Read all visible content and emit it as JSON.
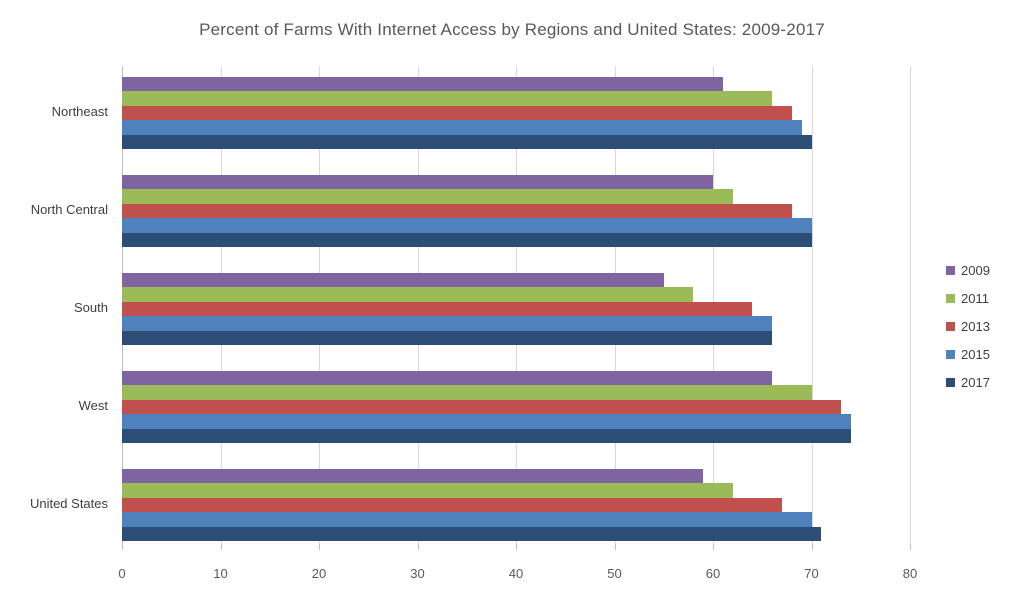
{
  "chart_data": {
    "type": "bar",
    "orientation": "horizontal",
    "title": "Percent of Farms With Internet  Access by Regions and United States: 2009-2017",
    "xlabel": "",
    "ylabel": "",
    "xlim": [
      0,
      80
    ],
    "xticks": [
      0,
      10,
      20,
      30,
      40,
      50,
      60,
      70,
      80
    ],
    "grid": true,
    "legend_position": "right",
    "categories": [
      "Northeast",
      "North Central",
      "South",
      "West",
      "United States"
    ],
    "series": [
      {
        "name": "2009",
        "color": "#8064A2",
        "values": [
          61,
          60,
          55,
          66,
          59
        ]
      },
      {
        "name": "2011",
        "color": "#9BBB59",
        "values": [
          66,
          62,
          58,
          70,
          62
        ]
      },
      {
        "name": "2013",
        "color": "#C0504D",
        "values": [
          68,
          68,
          64,
          73,
          67
        ]
      },
      {
        "name": "2015",
        "color": "#4F81BD",
        "values": [
          69,
          70,
          66,
          74,
          70
        ]
      },
      {
        "name": "2017",
        "color": "#2C4D75",
        "values": [
          70,
          70,
          66,
          74,
          71
        ]
      }
    ]
  }
}
